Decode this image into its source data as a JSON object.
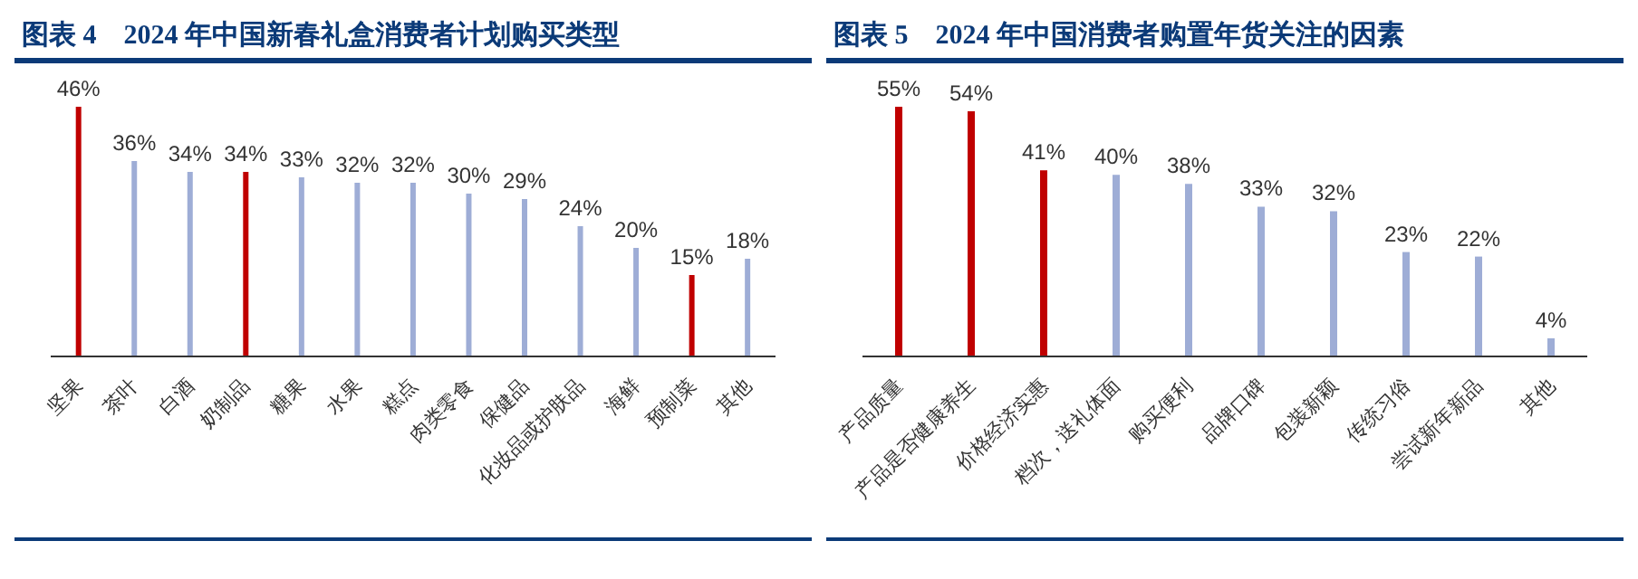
{
  "chart_data": [
    {
      "type": "bar",
      "title": "图表 4　2024 年中国新春礼盒消费者计划购买类型",
      "categories": [
        "坚果",
        "茶叶",
        "白酒",
        "奶制品",
        "糖果",
        "水果",
        "糕点",
        "肉类零食",
        "保健品",
        "化妆品或护肤品",
        "海鲜",
        "预制菜",
        "其他"
      ],
      "values": [
        46,
        36,
        34,
        34,
        33,
        32,
        32,
        30,
        29,
        24,
        20,
        15,
        18
      ],
      "value_labels": [
        "46%",
        "36%",
        "34%",
        "34%",
        "33%",
        "32%",
        "32%",
        "30%",
        "29%",
        "24%",
        "20%",
        "15%",
        "18%"
      ],
      "colors": [
        "#c00000",
        "#9eadd6",
        "#9eadd6",
        "#c00000",
        "#9eadd6",
        "#9eadd6",
        "#9eadd6",
        "#9eadd6",
        "#9eadd6",
        "#9eadd6",
        "#9eadd6",
        "#c00000",
        "#9eadd6"
      ],
      "grid": false,
      "legend": false
    },
    {
      "type": "bar",
      "title": "图表 5　2024 年中国消费者购置年货关注的因素",
      "categories": [
        "产品质量",
        "产品是否健康养生",
        "价格经济实惠",
        "档次，送礼体面",
        "购买便利",
        "品牌口碑",
        "包装新颖",
        "传统习俗",
        "尝试新年新品",
        "其他"
      ],
      "values": [
        55,
        54,
        41,
        40,
        38,
        33,
        32,
        23,
        22,
        4
      ],
      "value_labels": [
        "55%",
        "54%",
        "41%",
        "40%",
        "38%",
        "33%",
        "32%",
        "23%",
        "22%",
        "4%"
      ],
      "colors": [
        "#c00000",
        "#c00000",
        "#c00000",
        "#9eadd6",
        "#9eadd6",
        "#9eadd6",
        "#9eadd6",
        "#9eadd6",
        "#9eadd6",
        "#9eadd6"
      ],
      "grid": false,
      "legend": false
    }
  ]
}
